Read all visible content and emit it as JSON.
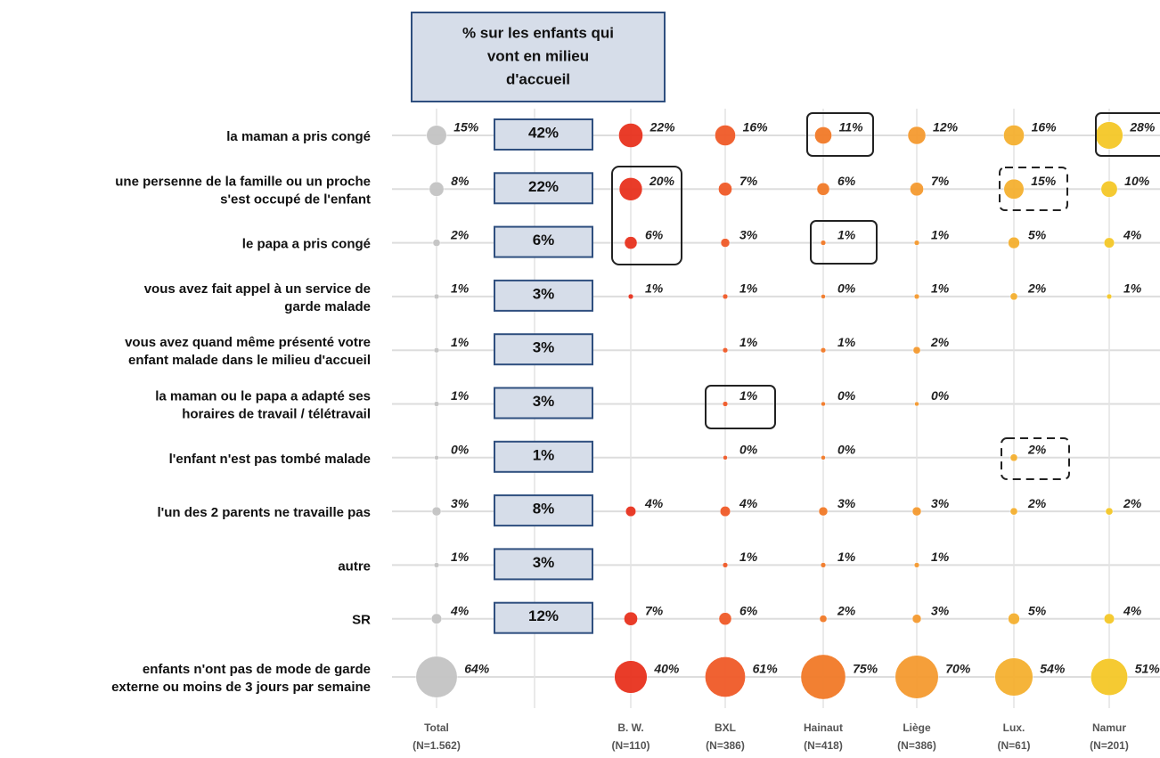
{
  "chart_data": {
    "type": "bubble-matrix",
    "header": [
      "% sur les enfants qui",
      "vont en milieu",
      "d'accueil"
    ],
    "rows": [
      [
        "la maman a pris congé"
      ],
      [
        "une persenne de la famille ou un proche",
        "s'est occupé de l'enfant"
      ],
      [
        "le papa a pris congé"
      ],
      [
        "vous avez fait appel à un service de",
        "garde malade"
      ],
      [
        "vous avez quand même présenté votre",
        "enfant malade dans le milieu d'accueil"
      ],
      [
        "la maman ou le papa a adapté ses",
        "horaires de travail / télétravail"
      ],
      [
        "l'enfant n'est pas tombé malade"
      ],
      [
        "l'un des 2 parents ne travaille pas"
      ],
      [
        "autre"
      ],
      [
        "SR"
      ],
      [
        "enfants n'ont pas de mode de garde",
        "externe ou moins de 3 jours par semaine"
      ]
    ],
    "accueil": {
      "values": [
        42,
        22,
        6,
        3,
        3,
        3,
        1,
        8,
        3,
        12
      ],
      "value_labels": [
        "42%",
        "22%",
        "6%",
        "3%",
        "3%",
        "3%",
        "1%",
        "8%",
        "3%",
        "12%"
      ]
    },
    "series": [
      {
        "name": [
          "Total",
          "(N=1.562)"
        ],
        "color": "#c4c4c4",
        "values": [
          15,
          8,
          2,
          1,
          1,
          1,
          0,
          3,
          1,
          4,
          64
        ],
        "value_labels": [
          "15%",
          "8%",
          "2%",
          "1%",
          "1%",
          "1%",
          "0%",
          "3%",
          "1%",
          "4%",
          "64%"
        ]
      },
      {
        "name": [
          "B. W.",
          "(N=110)"
        ],
        "color": "#e8321e",
        "values": [
          22,
          20,
          6,
          1,
          null,
          null,
          null,
          4,
          null,
          7,
          40
        ],
        "value_labels": [
          "22%",
          "20%",
          "6%",
          "1%",
          null,
          null,
          null,
          "4%",
          null,
          "7%",
          "40%"
        ]
      },
      {
        "name": [
          "BXL",
          "(N=386)"
        ],
        "color": "#f05a28",
        "values": [
          16,
          7,
          3,
          1,
          1,
          1,
          0,
          4,
          1,
          6,
          61
        ],
        "value_labels": [
          "16%",
          "7%",
          "3%",
          "1%",
          "1%",
          "1%",
          "0%",
          "4%",
          "1%",
          "6%",
          "61%"
        ]
      },
      {
        "name": [
          "Hainaut",
          "(N=418)"
        ],
        "color": "#f27a28",
        "values": [
          11,
          6,
          1,
          0,
          1,
          0,
          0,
          3,
          1,
          2,
          75
        ],
        "value_labels": [
          "11%",
          "6%",
          "1%",
          "0%",
          "1%",
          "0%",
          "0%",
          "3%",
          "1%",
          "2%",
          "75%"
        ]
      },
      {
        "name": [
          "Liège",
          "(N=386)"
        ],
        "color": "#f59a30",
        "values": [
          12,
          7,
          1,
          1,
          2,
          0,
          null,
          3,
          1,
          3,
          70
        ],
        "value_labels": [
          "12%",
          "7%",
          "1%",
          "1%",
          "2%",
          "0%",
          null,
          "3%",
          "1%",
          "3%",
          "70%"
        ]
      },
      {
        "name": [
          "Lux.",
          "(N=61)"
        ],
        "color": "#f5b030",
        "values": [
          16,
          15,
          5,
          2,
          null,
          null,
          2,
          2,
          null,
          5,
          54
        ],
        "value_labels": [
          "16%",
          "15%",
          "5%",
          "2%",
          null,
          null,
          "2%",
          "2%",
          null,
          "5%",
          "54%"
        ]
      },
      {
        "name": [
          "Namur",
          "(N=201)"
        ],
        "color": "#f5c828",
        "values": [
          28,
          10,
          4,
          1,
          null,
          null,
          null,
          2,
          null,
          4,
          51
        ],
        "value_labels": [
          "28%",
          "10%",
          "4%",
          "1%",
          null,
          null,
          null,
          "2%",
          null,
          "4%",
          "51%"
        ]
      }
    ]
  }
}
